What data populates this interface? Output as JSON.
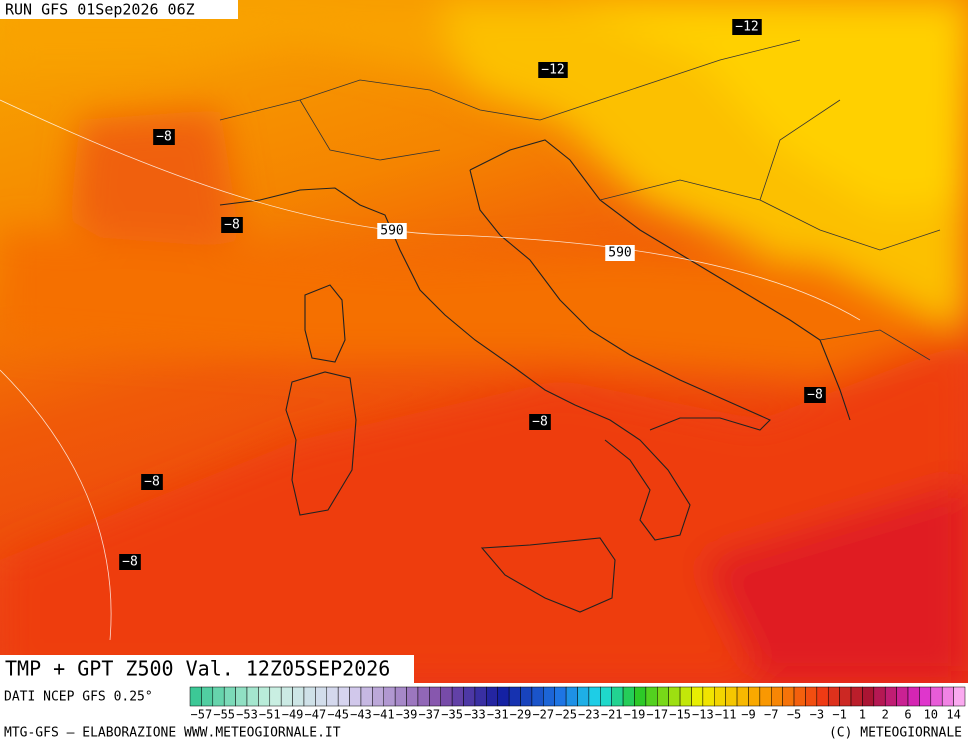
{
  "header": {
    "run": "RUN GFS 01Sep2026 06Z"
  },
  "contour_labels": [
    "−12",
    "−12",
    "−8",
    "−8",
    "−8",
    "−8",
    "−8",
    "−8",
    "590",
    "590"
  ],
  "footer": {
    "title": "TMP + GPT Z500 Val. 12Z05SEP2026",
    "source": "DATI NCEP GFS 0.25°",
    "credit": "MTG-GFS — ELABORAZIONE WWW.METEOGIORNALE.IT",
    "copyright": "(C) METEOGIORNALE"
  },
  "colorbar": {
    "labels": [
      "−57",
      "−55",
      "−53",
      "−51",
      "−49",
      "−47",
      "−45",
      "−43",
      "−41",
      "−39",
      "−37",
      "−35",
      "−33",
      "−31",
      "−29",
      "−27",
      "−25",
      "−23",
      "−21",
      "−19",
      "−17",
      "−15",
      "−13",
      "−11",
      "−9",
      "−7",
      "−5",
      "−3",
      "−1",
      "1",
      "2",
      "6",
      "10",
      "14"
    ]
  }
}
